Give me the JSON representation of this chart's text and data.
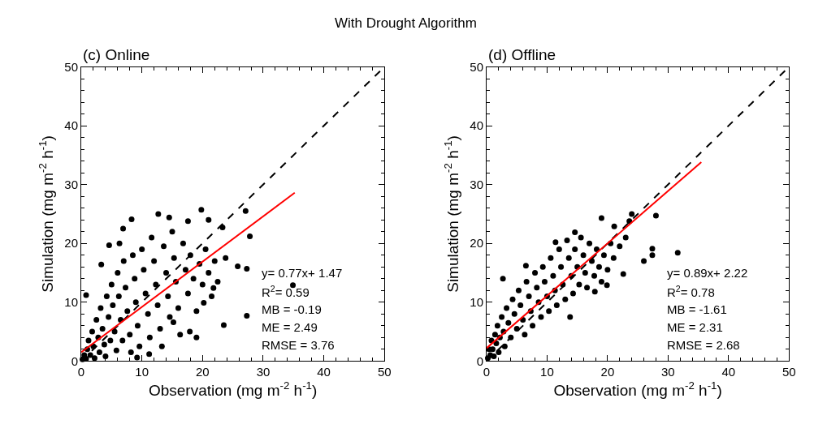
{
  "chart_data": [
    {
      "type": "scatter",
      "title": "(c) Online",
      "xlabel": "Observation (mg m$^{-2}$ h$^{-1}$)",
      "ylabel": "Simulation (mg m$^{-2}$ h$^{-1}$)",
      "annotations": [
        "With Drought Algorithm",
        "y= 0.77x+ 1.47",
        "R$^{2}$= 0.59",
        "MB = -0.19",
        "ME = 2.49",
        "RMSE = 3.76"
      ],
      "xlim": [
        0,
        50
      ],
      "ylim": [
        0,
        50
      ],
      "xticks": [
        0,
        10,
        20,
        30,
        40,
        50
      ],
      "yticks": [
        0,
        10,
        20,
        30,
        40,
        50
      ],
      "series": [
        {
          "marker": "circle",
          "color": "#000000",
          "x": [
            19.8,
            12.7,
            8.3,
            27.1,
            14.5,
            6.9,
            17.6,
            21.0,
            27.8,
            23.3,
            4.6,
            6.3,
            3.3,
            0.8,
            25.8,
            27.3,
            27.3,
            23.5,
            19.0,
            21.8,
            23.8,
            20.2,
            11.2,
            9.2,
            17.9,
            15.2,
            34.9,
            0.2,
            0.5,
            0.8,
            1.0,
            1.2,
            1.5,
            1.8,
            2.0,
            2.2,
            2.5,
            2.8,
            3.0,
            3.2,
            3.5,
            3.8,
            4.0,
            4.2,
            4.5,
            4.8,
            5.0,
            5.2,
            5.5,
            5.8,
            6.0,
            6.2,
            6.5,
            6.8,
            7.0,
            7.3,
            7.6,
            8.0,
            8.2,
            8.5,
            8.8,
            9.0,
            9.3,
            9.6,
            10.0,
            10.3,
            10.6,
            11.0,
            11.3,
            11.6,
            12.0,
            12.3,
            12.6,
            13.0,
            13.3,
            13.6,
            14.0,
            14.3,
            14.6,
            15.0,
            15.3,
            15.6,
            16.0,
            16.3,
            16.8,
            17.2,
            17.6,
            18.0,
            18.5,
            19.0,
            19.5,
            20.0,
            20.5,
            21.0,
            21.5,
            22.0,
            22.5
          ],
          "values": [
            25.7,
            25.0,
            24.1,
            25.5,
            24.4,
            22.5,
            23.8,
            24.0,
            21.2,
            22.7,
            19.7,
            20.0,
            16.4,
            11.2,
            16.1,
            15.7,
            7.7,
            6.1,
            4.0,
            12.4,
            17.5,
            9.9,
            1.2,
            0.6,
            5.0,
            6.6,
            12.9,
            0.3,
            1.0,
            0.4,
            2.0,
            3.5,
            1.0,
            5.0,
            2.5,
            0.5,
            7.0,
            4.0,
            1.5,
            9.0,
            5.5,
            2.8,
            0.8,
            11.0,
            7.5,
            3.5,
            13.0,
            9.5,
            5.0,
            1.8,
            15.0,
            11.0,
            7.0,
            3.5,
            17.0,
            12.5,
            8.5,
            4.5,
            1.5,
            18.0,
            14.0,
            10.0,
            6.0,
            2.5,
            19.0,
            15.5,
            11.5,
            8.0,
            4.0,
            21.0,
            17.0,
            13.0,
            9.5,
            5.5,
            2.5,
            19.5,
            15.0,
            11.0,
            7.5,
            22.0,
            17.5,
            13.5,
            9.0,
            4.5,
            20.0,
            15.5,
            11.5,
            18.0,
            14.0,
            8.5,
            16.5,
            13.0,
            19.0,
            15.0,
            11.0,
            17.0,
            13.5
          ]
        },
        {
          "type": "line",
          "color": "#000000",
          "line_style": "dashed",
          "x": [
            0,
            50
          ],
          "values": [
            0,
            50
          ]
        },
        {
          "type": "line",
          "color": "#ff0000",
          "line_style": "solid",
          "x": [
            0,
            35.2
          ],
          "values": [
            1.5,
            28.6
          ]
        }
      ]
    },
    {
      "type": "scatter",
      "title": "(d) Offline",
      "xlabel": "Observation (mg m$^{-2}$ h$^{-1}$)",
      "ylabel": "Simulation (mg m$^{-2}$ h$^{-1}$)",
      "annotations": [
        "y= 0.89x+ 2.22",
        "R$^{2}$= 0.78",
        "MB = -1.61",
        "ME = 2.31",
        "RMSE = 2.68"
      ],
      "xlim": [
        0,
        50
      ],
      "ylim": [
        0,
        50
      ],
      "xticks": [
        0,
        10,
        20,
        30,
        40,
        50
      ],
      "yticks": [
        0,
        10,
        20,
        30,
        40,
        50
      ],
      "series": [
        {
          "marker": "circle",
          "color": "#000000",
          "x": [
            28.0,
            24.0,
            19.0,
            21.1,
            27.4,
            27.4,
            26.0,
            22.6,
            2.7,
            6.5,
            13.8,
            17.9,
            19.9,
            23.6,
            31.6,
            14.6,
            11.4,
            0.2,
            0.4,
            0.6,
            0.8,
            1.0,
            1.2,
            1.4,
            1.6,
            1.8,
            2.0,
            2.2,
            2.5,
            2.8,
            3.0,
            3.3,
            3.6,
            4.0,
            4.3,
            4.6,
            5.0,
            5.3,
            5.6,
            6.0,
            6.3,
            6.6,
            7.0,
            7.3,
            7.6,
            8.0,
            8.3,
            8.6,
            9.0,
            9.3,
            9.6,
            10.0,
            10.3,
            10.6,
            11.0,
            11.3,
            11.6,
            12.0,
            12.3,
            12.6,
            13.0,
            13.3,
            13.6,
            14.0,
            14.3,
            14.6,
            15.0,
            15.3,
            15.6,
            16.0,
            16.3,
            16.6,
            17.0,
            17.4,
            17.8,
            18.2,
            18.6,
            19.0,
            19.4,
            20.0,
            20.5,
            21.0,
            22.0,
            23.0
          ],
          "values": [
            24.7,
            25.0,
            24.3,
            22.9,
            19.1,
            18.0,
            17.0,
            14.8,
            14.0,
            16.2,
            7.5,
            11.8,
            12.9,
            23.8,
            18.4,
            21.9,
            20.2,
            0.5,
            2.0,
            1.0,
            3.5,
            2.0,
            0.8,
            4.5,
            3.0,
            6.0,
            1.5,
            4.0,
            7.5,
            5.0,
            2.5,
            9.0,
            6.5,
            4.0,
            10.5,
            8.0,
            5.5,
            12.0,
            9.5,
            7.0,
            4.5,
            13.5,
            11.0,
            8.5,
            6.0,
            15.0,
            12.5,
            10.0,
            7.5,
            16.0,
            13.5,
            11.0,
            8.5,
            17.5,
            14.5,
            12.0,
            9.5,
            19.0,
            16.0,
            13.0,
            10.5,
            20.5,
            17.5,
            14.5,
            11.5,
            19.0,
            16.0,
            13.0,
            21.0,
            18.0,
            15.0,
            12.5,
            20.0,
            17.0,
            14.5,
            19.0,
            16.0,
            13.5,
            18.0,
            15.5,
            20.0,
            17.5,
            19.5,
            21.0
          ]
        },
        {
          "type": "line",
          "color": "#000000",
          "line_style": "dashed",
          "x": [
            0,
            50
          ],
          "values": [
            0,
            50
          ]
        },
        {
          "type": "line",
          "color": "#ff0000",
          "line_style": "solid",
          "x": [
            0,
            35.5
          ],
          "values": [
            2.2,
            33.8
          ]
        }
      ]
    }
  ]
}
